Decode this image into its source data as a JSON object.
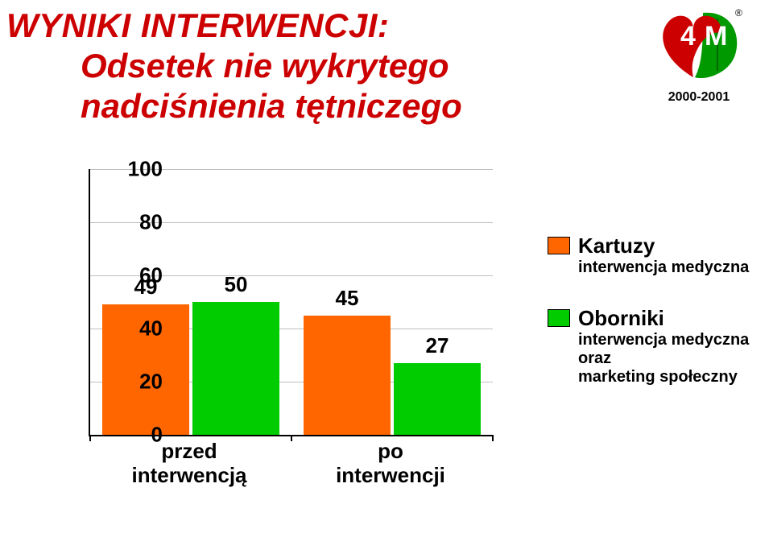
{
  "title": {
    "line1": "WYNIKI INTERWENCJI:",
    "line2": "Odsetek nie wykrytego",
    "line3": "nadciśnienia tętniczego",
    "color": "#cc0000",
    "fontsize": 42,
    "fontweight": 900,
    "italic": true
  },
  "logo": {
    "top_number": "4",
    "top_letter": "M",
    "years": "2000-2001",
    "heart_color": "#cc0000",
    "leaf_color": "#009900",
    "text_color": "#ffffff",
    "reg_mark": "®"
  },
  "chart": {
    "type": "bar",
    "ylim": [
      0,
      100
    ],
    "ytick_step": 20,
    "yticks": [
      0,
      20,
      40,
      60,
      80,
      100
    ],
    "grid_color": "#bfbfbf",
    "axis_color": "#000000",
    "background_color": "#ffffff",
    "label_fontsize": 26,
    "label_fontweight": 700,
    "bar_group_gap": 0.15,
    "groups": [
      {
        "label_line1": "przed",
        "label_line2": "interwencją",
        "bars": [
          {
            "value": 49,
            "color": "#ff6600"
          },
          {
            "value": 50,
            "color": "#00cc00"
          }
        ]
      },
      {
        "label_line1": "po",
        "label_line2": "interwencji",
        "bars": [
          {
            "value": 45,
            "color": "#ff6600"
          },
          {
            "value": 27,
            "color": "#00cc00"
          }
        ]
      }
    ]
  },
  "legend": {
    "items": [
      {
        "swatch_color": "#ff6600",
        "title": "Kartuzy",
        "sub1": "interwencja medyczna",
        "sub2": "",
        "sub3": ""
      },
      {
        "swatch_color": "#00cc00",
        "title": "Oborniki",
        "sub1": "interwencja medyczna",
        "sub2": "oraz",
        "sub3": "marketing społeczny"
      }
    ],
    "title_fontsize": 26,
    "sub_fontsize": 20
  }
}
